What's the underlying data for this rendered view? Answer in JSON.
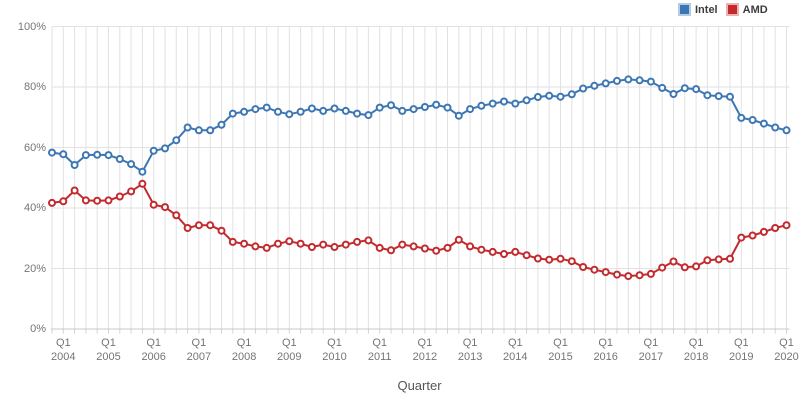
{
  "legend": {
    "items": [
      {
        "label": "Intel",
        "color": "#3d76b4",
        "border": "#b3cde5"
      },
      {
        "label": "AMD",
        "color": "#c22a2e",
        "border": "#ecb3b4"
      }
    ]
  },
  "axes": {
    "x_title": "Quarter",
    "y_ticks": [
      {
        "label": "0%",
        "value": 0
      },
      {
        "label": "20%",
        "value": 20
      },
      {
        "label": "40%",
        "value": 40
      },
      {
        "label": "60%",
        "value": 60
      },
      {
        "label": "80%",
        "value": 80
      },
      {
        "label": "100%",
        "value": 100
      }
    ],
    "x_ticks": [
      {
        "q": "Q1",
        "year": "2004"
      },
      {
        "q": "Q1",
        "year": "2005"
      },
      {
        "q": "Q1",
        "year": "2006"
      },
      {
        "q": "Q1",
        "year": "2007"
      },
      {
        "q": "Q1",
        "year": "2008"
      },
      {
        "q": "Q1",
        "year": "2009"
      },
      {
        "q": "Q1",
        "year": "2010"
      },
      {
        "q": "Q1",
        "year": "2011"
      },
      {
        "q": "Q1",
        "year": "2012"
      },
      {
        "q": "Q1",
        "year": "2013"
      },
      {
        "q": "Q1",
        "year": "2014"
      },
      {
        "q": "Q1",
        "year": "2015"
      },
      {
        "q": "Q1",
        "year": "2016"
      },
      {
        "q": "Q1",
        "year": "2017"
      },
      {
        "q": "Q1",
        "year": "2018"
      },
      {
        "q": "Q1",
        "year": "2019"
      },
      {
        "q": "Q1",
        "year": "2020"
      }
    ]
  },
  "colors": {
    "grid": "#e2e2e2",
    "axis_line": "#c9c9c9",
    "tick": "#d2d2d2",
    "background": "#ffffff"
  },
  "chart_data": {
    "type": "line",
    "title": "",
    "xlabel": "Quarter",
    "ylabel": "",
    "ylim": [
      0,
      100
    ],
    "y_tick_step": 20,
    "grid": true,
    "legend_position": "top-right",
    "marker": "open-circle",
    "x": [
      "Q4 2003",
      "Q1 2004",
      "Q2 2004",
      "Q3 2004",
      "Q4 2004",
      "Q1 2005",
      "Q2 2005",
      "Q3 2005",
      "Q4 2005",
      "Q1 2006",
      "Q2 2006",
      "Q3 2006",
      "Q4 2006",
      "Q1 2007",
      "Q2 2007",
      "Q3 2007",
      "Q4 2007",
      "Q1 2008",
      "Q2 2008",
      "Q3 2008",
      "Q4 2008",
      "Q1 2009",
      "Q2 2009",
      "Q3 2009",
      "Q4 2009",
      "Q1 2010",
      "Q2 2010",
      "Q3 2010",
      "Q4 2010",
      "Q1 2011",
      "Q2 2011",
      "Q3 2011",
      "Q4 2011",
      "Q1 2012",
      "Q2 2012",
      "Q3 2012",
      "Q4 2012",
      "Q1 2013",
      "Q2 2013",
      "Q3 2013",
      "Q4 2013",
      "Q1 2014",
      "Q2 2014",
      "Q3 2014",
      "Q4 2014",
      "Q1 2015",
      "Q2 2015",
      "Q3 2015",
      "Q4 2015",
      "Q1 2016",
      "Q2 2016",
      "Q3 2016",
      "Q4 2016",
      "Q1 2017",
      "Q2 2017",
      "Q3 2017",
      "Q4 2017",
      "Q1 2018",
      "Q2 2018",
      "Q3 2018",
      "Q4 2018",
      "Q1 2019",
      "Q2 2019",
      "Q3 2019",
      "Q4 2019",
      "Q1 2020"
    ],
    "series": [
      {
        "name": "Intel",
        "color": "#3d76b4",
        "values": [
          58.3,
          57.8,
          54.2,
          57.5,
          57.6,
          57.5,
          56.2,
          54.5,
          52.0,
          58.9,
          59.7,
          62.4,
          66.6,
          65.7,
          65.7,
          67.5,
          71.2,
          71.8,
          72.7,
          73.2,
          71.8,
          71.0,
          71.8,
          72.9,
          72.1,
          72.9,
          72.1,
          71.2,
          70.7,
          73.2,
          74.0,
          72.1,
          72.7,
          73.4,
          74.1,
          73.2,
          70.5,
          72.7,
          73.8,
          74.5,
          75.2,
          74.5,
          75.6,
          76.7,
          77.1,
          76.8,
          77.6,
          79.5,
          80.4,
          81.2,
          82.0,
          82.5,
          82.2,
          81.8,
          79.7,
          77.7,
          79.6,
          79.3,
          77.3,
          77.0,
          76.8,
          69.8,
          69.1,
          67.9,
          66.6,
          65.7
        ]
      },
      {
        "name": "AMD",
        "color": "#c22a2e",
        "values": [
          41.7,
          42.2,
          45.8,
          42.5,
          42.4,
          42.5,
          43.8,
          45.5,
          48.0,
          41.1,
          40.3,
          37.6,
          33.4,
          34.3,
          34.3,
          32.5,
          28.8,
          28.2,
          27.3,
          26.8,
          28.2,
          29.0,
          28.2,
          27.1,
          27.9,
          27.1,
          27.9,
          28.8,
          29.3,
          26.8,
          26.0,
          27.9,
          27.3,
          26.6,
          25.9,
          26.8,
          29.5,
          27.3,
          26.2,
          25.5,
          24.8,
          25.5,
          24.4,
          23.3,
          22.9,
          23.2,
          22.4,
          20.5,
          19.6,
          18.8,
          18.0,
          17.5,
          17.8,
          18.2,
          20.3,
          22.3,
          20.4,
          20.7,
          22.7,
          23.0,
          23.2,
          30.2,
          30.9,
          32.1,
          33.4,
          34.3
        ]
      }
    ]
  }
}
